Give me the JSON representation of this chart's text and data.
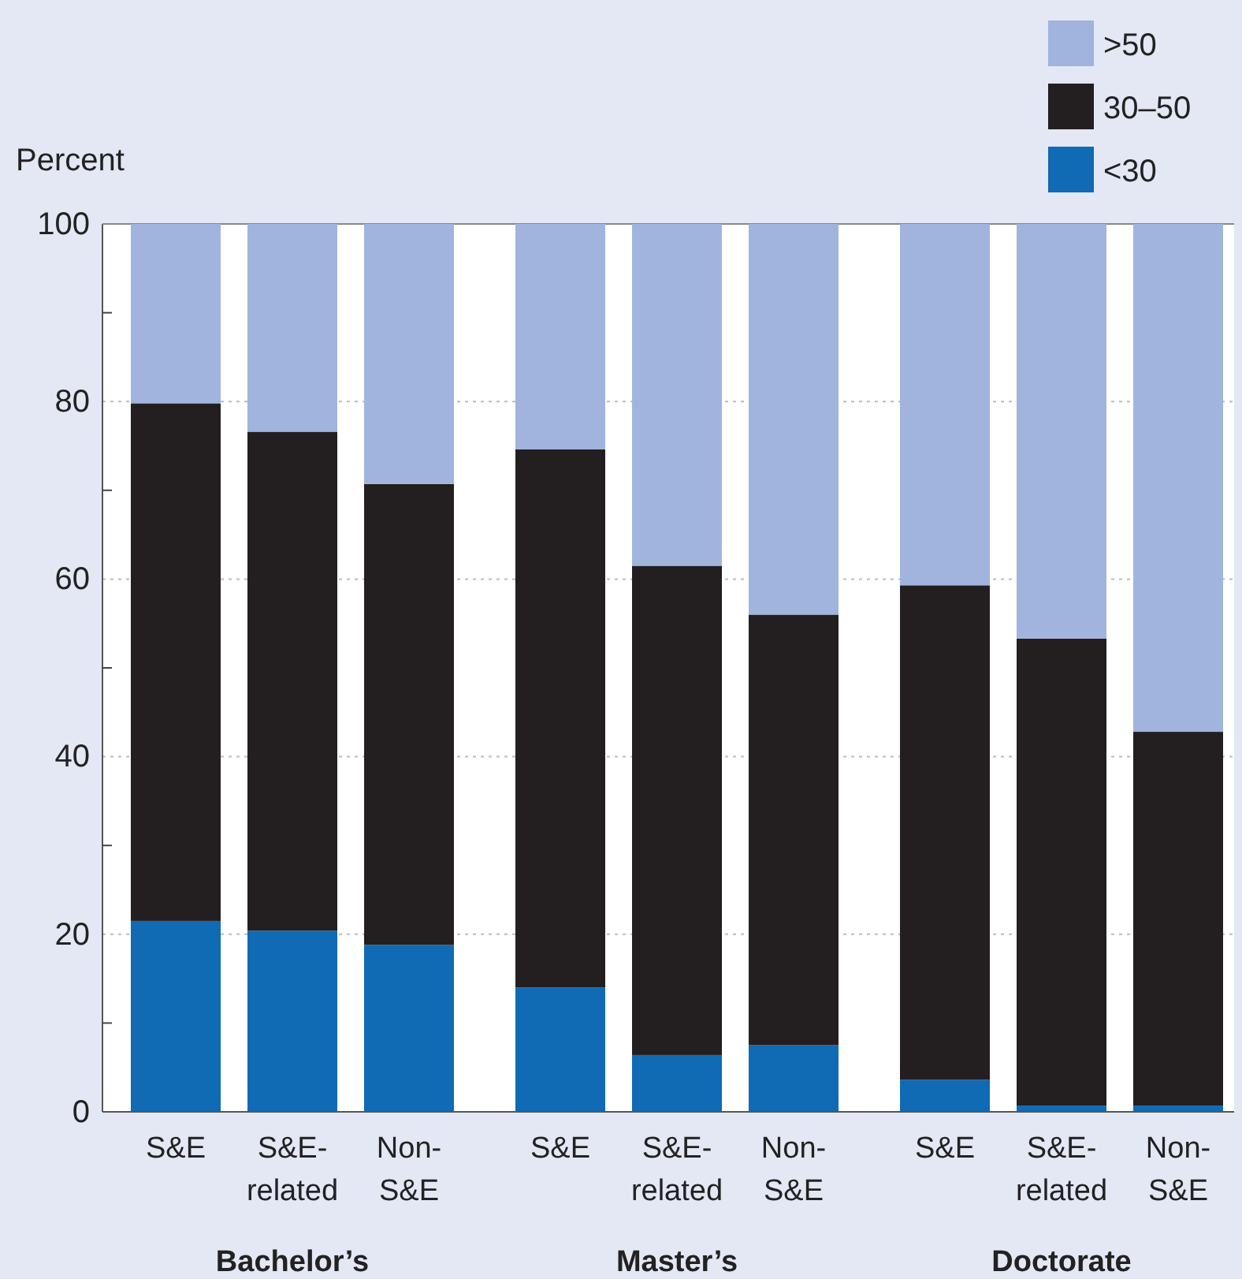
{
  "chart_data": {
    "type": "bar",
    "stacked": true,
    "ylabel": "Percent",
    "categories": [
      "S&E",
      "S&E-\nrelated",
      "Non-\nS&E",
      "S&E",
      "S&E-\nrelated",
      "Non-\nS&E",
      "S&E",
      "S&E-\nrelated",
      "Non-\nS&E"
    ],
    "series": [
      {
        "name": "<30",
        "color": "#106ab4",
        "values": [
          21.5,
          20.4,
          18.8,
          14.0,
          6.4,
          7.5,
          3.6,
          0.7,
          0.7
        ]
      },
      {
        "name": "30–50",
        "color": "#231f20",
        "values": [
          58.3,
          56.2,
          51.9,
          60.6,
          55.1,
          48.5,
          55.7,
          52.6,
          42.1
        ]
      },
      {
        "name": ">50",
        "color": "#a0b4de",
        "values": [
          20.2,
          23.4,
          29.3,
          25.4,
          38.5,
          44.0,
          40.7,
          46.7,
          57.2
        ]
      }
    ],
    "ylim": [
      0,
      100
    ],
    "yticks": [
      0,
      {
        "value": 10,
        "label": null
      },
      20,
      {
        "value": 30,
        "label": null
      },
      40,
      {
        "value": 50,
        "label": null
      },
      60,
      {
        "value": 70,
        "label": null
      },
      80,
      {
        "value": 90,
        "label": null
      },
      100
    ],
    "grid": "y",
    "legend": "top right",
    "annotations": [
      "Bachelor’s",
      "Master’s",
      "Doctorate"
    ]
  }
}
